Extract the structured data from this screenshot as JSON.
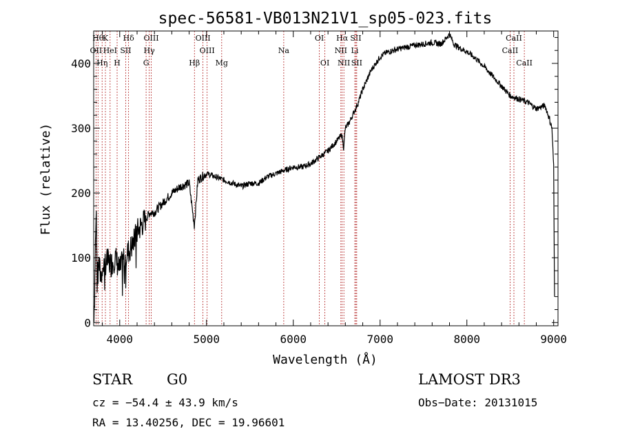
{
  "chart_data": {
    "type": "line",
    "title": "spec-56581-VB013N21V1_sp05-023.fits",
    "xlabel": "Wavelength (Å)",
    "ylabel": "Flux (relative)",
    "xlim": [
      3700,
      9050
    ],
    "ylim": [
      -5,
      450
    ],
    "xticks": [
      4000,
      5000,
      6000,
      7000,
      8000,
      9000
    ],
    "xtick_labels": [
      "4000",
      "5000",
      "6000",
      "7000",
      "8000",
      "9000"
    ],
    "yticks": [
      0,
      100,
      200,
      300,
      400
    ],
    "ytick_labels": [
      "0",
      "100",
      "200",
      "300",
      "400"
    ],
    "series": [
      {
        "name": "spectrum",
        "x": [
          3700,
          3710,
          3720,
          3730,
          3740,
          3750,
          3760,
          3780,
          3800,
          3850,
          3900,
          3950,
          4000,
          4050,
          4100,
          4150,
          4200,
          4250,
          4300,
          4350,
          4400,
          4500,
          4600,
          4700,
          4800,
          4860,
          4900,
          5000,
          5100,
          5200,
          5300,
          5400,
          5500,
          5600,
          5700,
          5800,
          5900,
          6000,
          6100,
          6200,
          6300,
          6400,
          6500,
          6560,
          6580,
          6600,
          6650,
          6700,
          6750,
          6800,
          6850,
          6900,
          6950,
          7000,
          7050,
          7100,
          7200,
          7300,
          7400,
          7500,
          7600,
          7700,
          7750,
          7800,
          7850,
          7900,
          8000,
          8100,
          8200,
          8300,
          8400,
          8500,
          8600,
          8700,
          8800,
          8900,
          8950,
          8980,
          9000,
          9010
        ],
        "values": [
          5,
          40,
          120,
          170,
          60,
          100,
          90,
          70,
          85,
          95,
          90,
          100,
          80,
          100,
          110,
          120,
          140,
          150,
          160,
          170,
          170,
          185,
          200,
          210,
          215,
          150,
          220,
          230,
          225,
          220,
          215,
          210,
          215,
          215,
          225,
          230,
          235,
          240,
          240,
          245,
          255,
          265,
          280,
          290,
          270,
          300,
          310,
          325,
          340,
          360,
          375,
          390,
          400,
          410,
          415,
          418,
          422,
          425,
          428,
          430,
          432,
          430,
          437,
          445,
          430,
          425,
          418,
          408,
          395,
          380,
          365,
          350,
          345,
          340,
          330,
          335,
          315,
          300,
          240,
          40
        ]
      }
    ],
    "lines_top": [
      {
        "wl": 3750,
        "label": "Hθ"
      },
      {
        "wl": 3835,
        "label": "K"
      },
      {
        "wl": 4102,
        "label": "Hδ"
      },
      {
        "wl": 4363,
        "label": "OIII"
      },
      {
        "wl": 4959,
        "label": "OIII"
      },
      {
        "wl": 6300,
        "label": "OI"
      },
      {
        "wl": 6563,
        "label": "Hα"
      },
      {
        "wl": 6720,
        "label": "SII"
      },
      {
        "wl": 8542,
        "label": "CaII"
      }
    ],
    "lines_mid": [
      {
        "wl": 3727,
        "label": "OII"
      },
      {
        "wl": 3889,
        "label": "HeI"
      },
      {
        "wl": 4069,
        "label": "SII"
      },
      {
        "wl": 4340,
        "label": "Hγ"
      },
      {
        "wl": 5007,
        "label": "OIII"
      },
      {
        "wl": 5890,
        "label": "Na"
      },
      {
        "wl": 6548,
        "label": "NII"
      },
      {
        "wl": 6708,
        "label": "Li"
      },
      {
        "wl": 8498,
        "label": "CaII"
      }
    ],
    "lines_low": [
      {
        "wl": 3797,
        "label": "Hη"
      },
      {
        "wl": 3970,
        "label": "H"
      },
      {
        "wl": 4304,
        "label": "G"
      },
      {
        "wl": 4861,
        "label": "Hβ"
      },
      {
        "wl": 5175,
        "label": "Mg"
      },
      {
        "wl": 6364,
        "label": "OI"
      },
      {
        "wl": 6583,
        "label": "NII"
      },
      {
        "wl": 6731,
        "label": "SII"
      },
      {
        "wl": 8662,
        "label": "CaII"
      }
    ]
  },
  "info": {
    "class_label": "STAR",
    "subclass": "G0",
    "survey": "LAMOST DR3",
    "cz": "cz = −54.4 ± 43.9 km/s",
    "obs_date": "Obs−Date: 20131015",
    "radec": "RA =  13.40256, DEC =  19.96601"
  }
}
